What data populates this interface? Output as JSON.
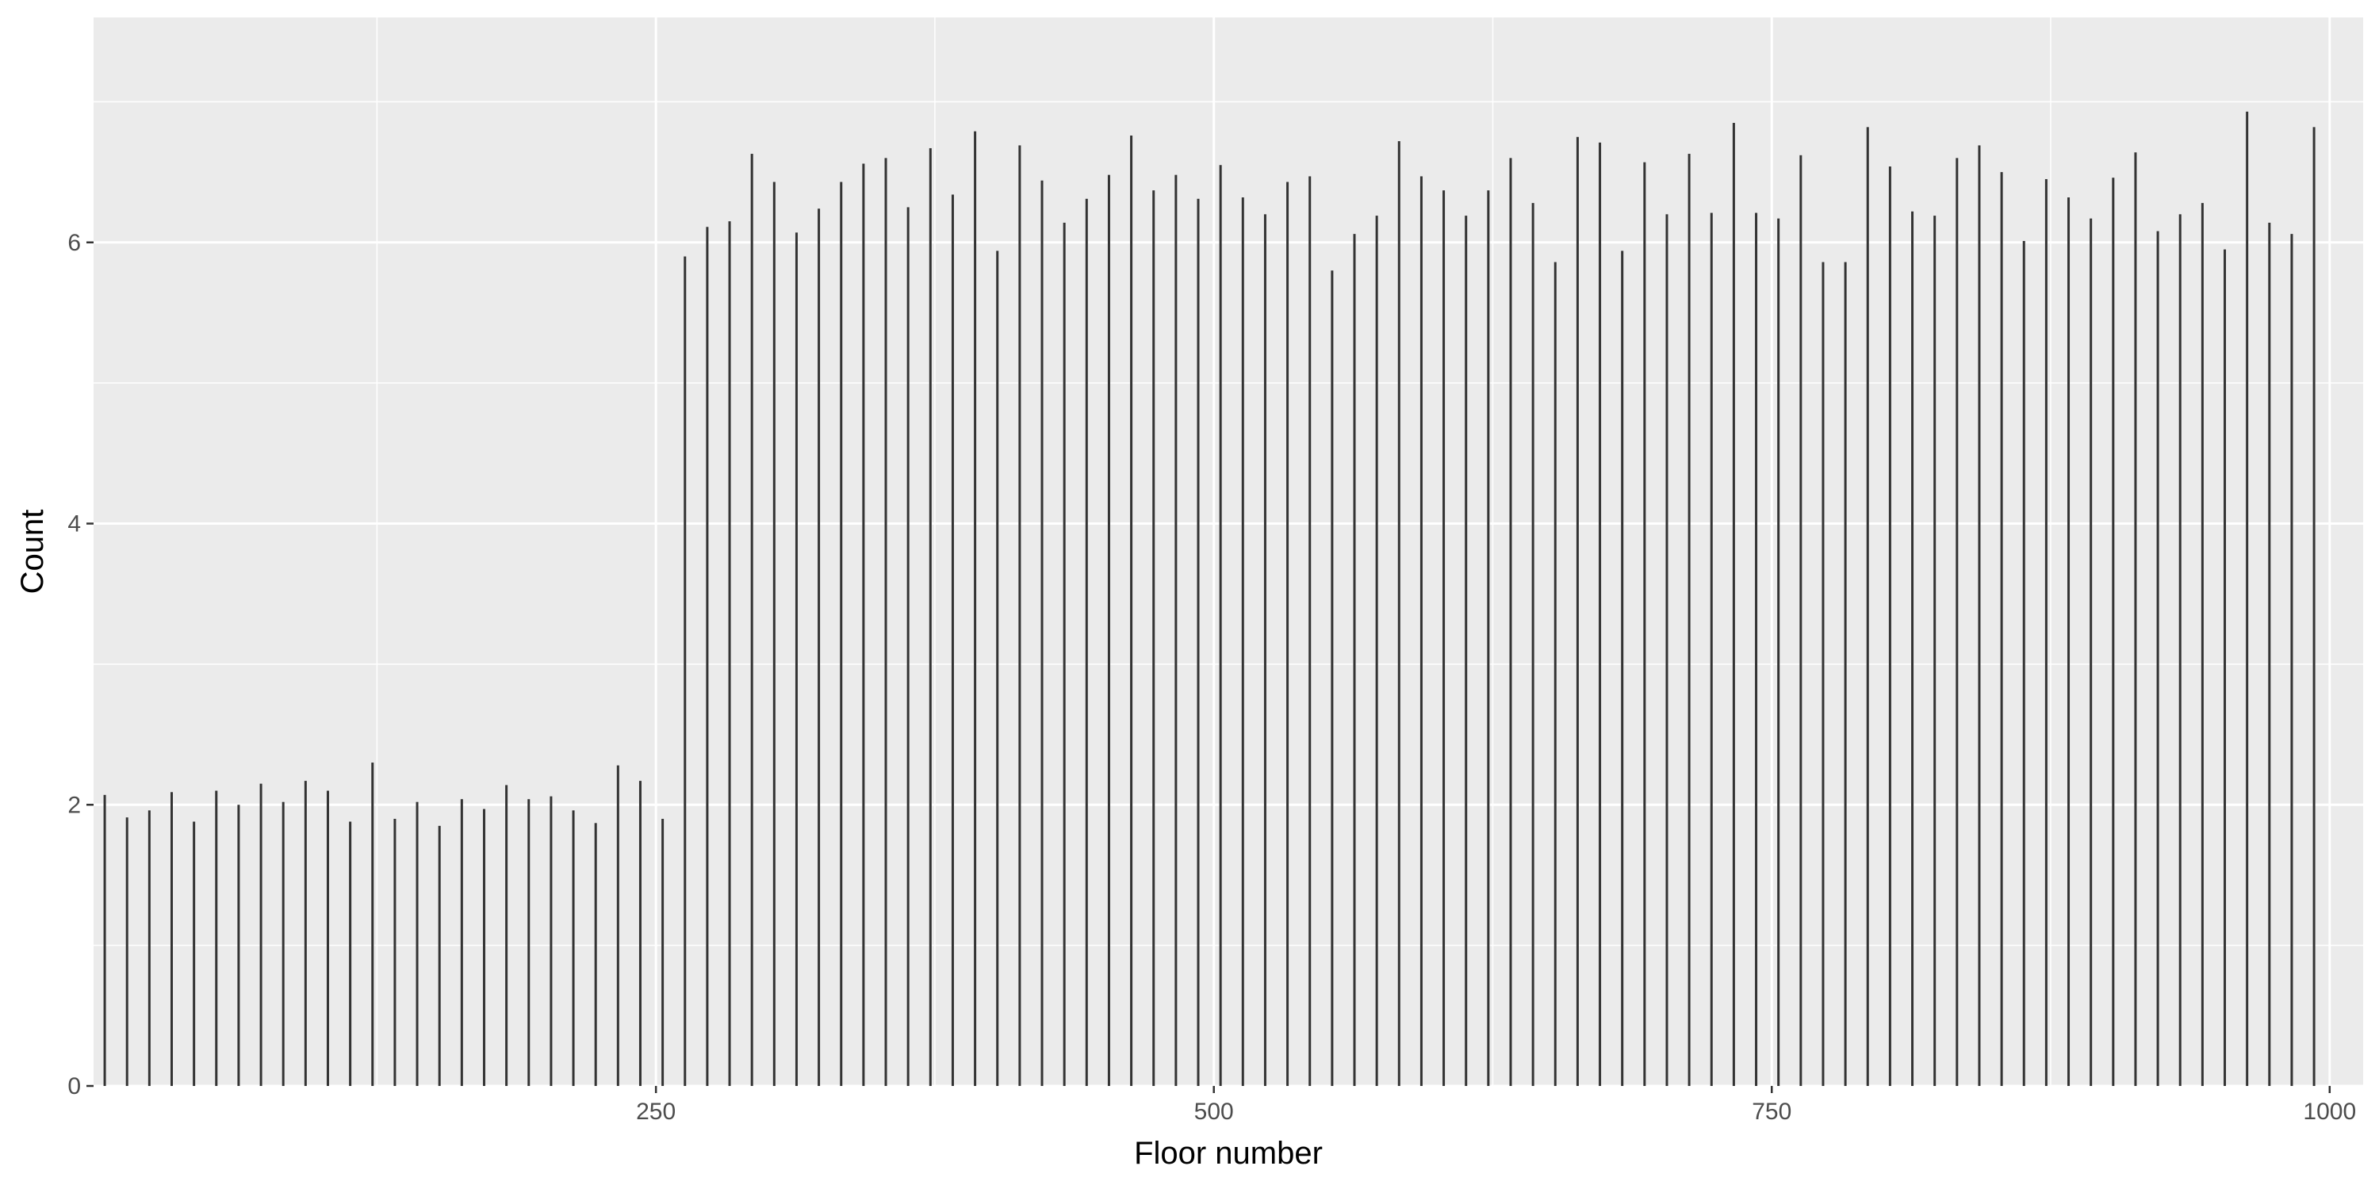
{
  "chart_data": {
    "type": "bar",
    "xlabel": "Floor number",
    "ylabel": "Count",
    "xlim": [
      -2,
      1015
    ],
    "ylim": [
      0,
      7.6
    ],
    "x_ticks": [
      250,
      500,
      750,
      1000
    ],
    "y_ticks": [
      0,
      2,
      4,
      6
    ],
    "x_minor": [
      125,
      375,
      625,
      875
    ],
    "y_minor": [
      1,
      3,
      5,
      7
    ],
    "grid": true,
    "legend": "none",
    "colors": {
      "panel": "#ebebeb",
      "grid": "#ffffff",
      "bar": "#333333",
      "tick": "#333333"
    },
    "x": [
      3,
      13,
      23,
      33,
      43,
      53,
      63,
      73,
      83,
      93,
      103,
      113,
      123,
      133,
      143,
      153,
      163,
      173,
      183,
      193,
      203,
      213,
      223,
      233,
      243,
      253,
      263,
      273,
      283,
      293,
      303,
      313,
      323,
      333,
      343,
      353,
      363,
      373,
      383,
      393,
      403,
      413,
      423,
      433,
      443,
      453,
      463,
      473,
      483,
      493,
      503,
      513,
      523,
      533,
      543,
      553,
      563,
      573,
      583,
      593,
      603,
      613,
      623,
      633,
      643,
      653,
      663,
      673,
      683,
      693,
      703,
      713,
      723,
      733,
      743,
      753,
      763,
      773,
      783,
      793,
      803,
      813,
      823,
      833,
      843,
      853,
      863,
      873,
      883,
      893,
      903,
      913,
      923,
      933,
      943,
      953,
      963,
      973,
      983,
      993
    ],
    "values": [
      2.07,
      1.91,
      1.96,
      2.09,
      1.88,
      2.1,
      2.0,
      2.15,
      2.02,
      2.17,
      2.1,
      1.88,
      2.3,
      1.9,
      2.02,
      1.85,
      2.04,
      1.97,
      2.14,
      2.04,
      2.06,
      1.96,
      1.87,
      2.28,
      2.17,
      1.9,
      5.9,
      6.11,
      6.15,
      6.63,
      6.43,
      6.07,
      6.24,
      6.43,
      6.56,
      6.6,
      6.25,
      6.67,
      6.34,
      6.79,
      5.94,
      6.69,
      6.44,
      6.14,
      6.31,
      6.48,
      6.76,
      6.37,
      6.48,
      6.31,
      6.55,
      6.32,
      6.2,
      6.43,
      6.47,
      5.8,
      6.06,
      6.19,
      6.72,
      6.47,
      6.37,
      6.19,
      6.37,
      6.6,
      6.28,
      5.86,
      6.75,
      6.71,
      5.94,
      6.57,
      6.2,
      6.63,
      6.21,
      6.85,
      6.21,
      6.17,
      6.62,
      5.86,
      5.86,
      6.82,
      6.54,
      6.22,
      6.19,
      6.6,
      6.69,
      6.5,
      6.01,
      6.45,
      6.32,
      6.17,
      6.46,
      6.64,
      6.08,
      6.2,
      6.28,
      5.95,
      6.93,
      6.14,
      6.06,
      6.82
    ]
  }
}
